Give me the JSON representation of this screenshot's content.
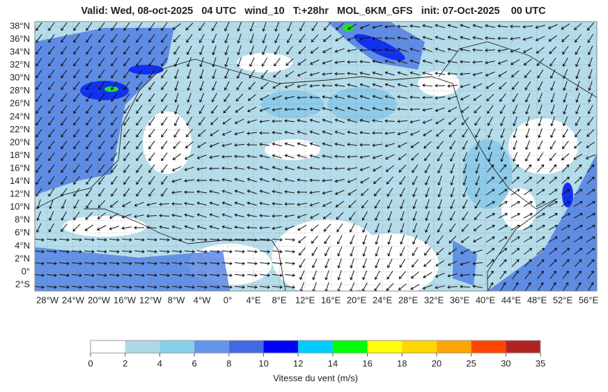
{
  "header": {
    "title": "Valid: Wed, 08-oct-2025   04 UTC   wind_10   T:+28hr   MOL_6KM_GFS   init: 07-Oct-2025    00 UTC"
  },
  "map": {
    "lat_labels": [
      "38°N",
      "36°N",
      "34°N",
      "32°N",
      "30°N",
      "28°N",
      "26°N",
      "24°N",
      "22°N",
      "20°N",
      "18°N",
      "16°N",
      "14°N",
      "12°N",
      "10°N",
      "8°N",
      "6°N",
      "4°N",
      "2°N",
      "0°",
      "2°S"
    ],
    "lon_labels": [
      "28°W",
      "24°W",
      "20°W",
      "16°W",
      "12°W",
      "8°W",
      "4°W",
      "0°",
      "4°E",
      "8°E",
      "12°E",
      "16°E",
      "20°E",
      "24°E",
      "28°E",
      "32°E",
      "36°E",
      "40°E",
      "44°E",
      "48°E",
      "52°E",
      "56°E"
    ]
  },
  "colorbar": {
    "ticks": [
      0,
      2,
      4,
      6,
      8,
      10,
      12,
      14,
      16,
      18,
      20,
      25,
      30,
      35
    ],
    "colors": [
      "#ffffff",
      "#add8e6",
      "#87ceeb",
      "#6495ed",
      "#4169e1",
      "#0000ff",
      "#00ccff",
      "#00ff00",
      "#ffff00",
      "#ffd700",
      "#ffa500",
      "#ff4500",
      "#b22222"
    ],
    "label": "Vitesse du vent (m/s)"
  }
}
